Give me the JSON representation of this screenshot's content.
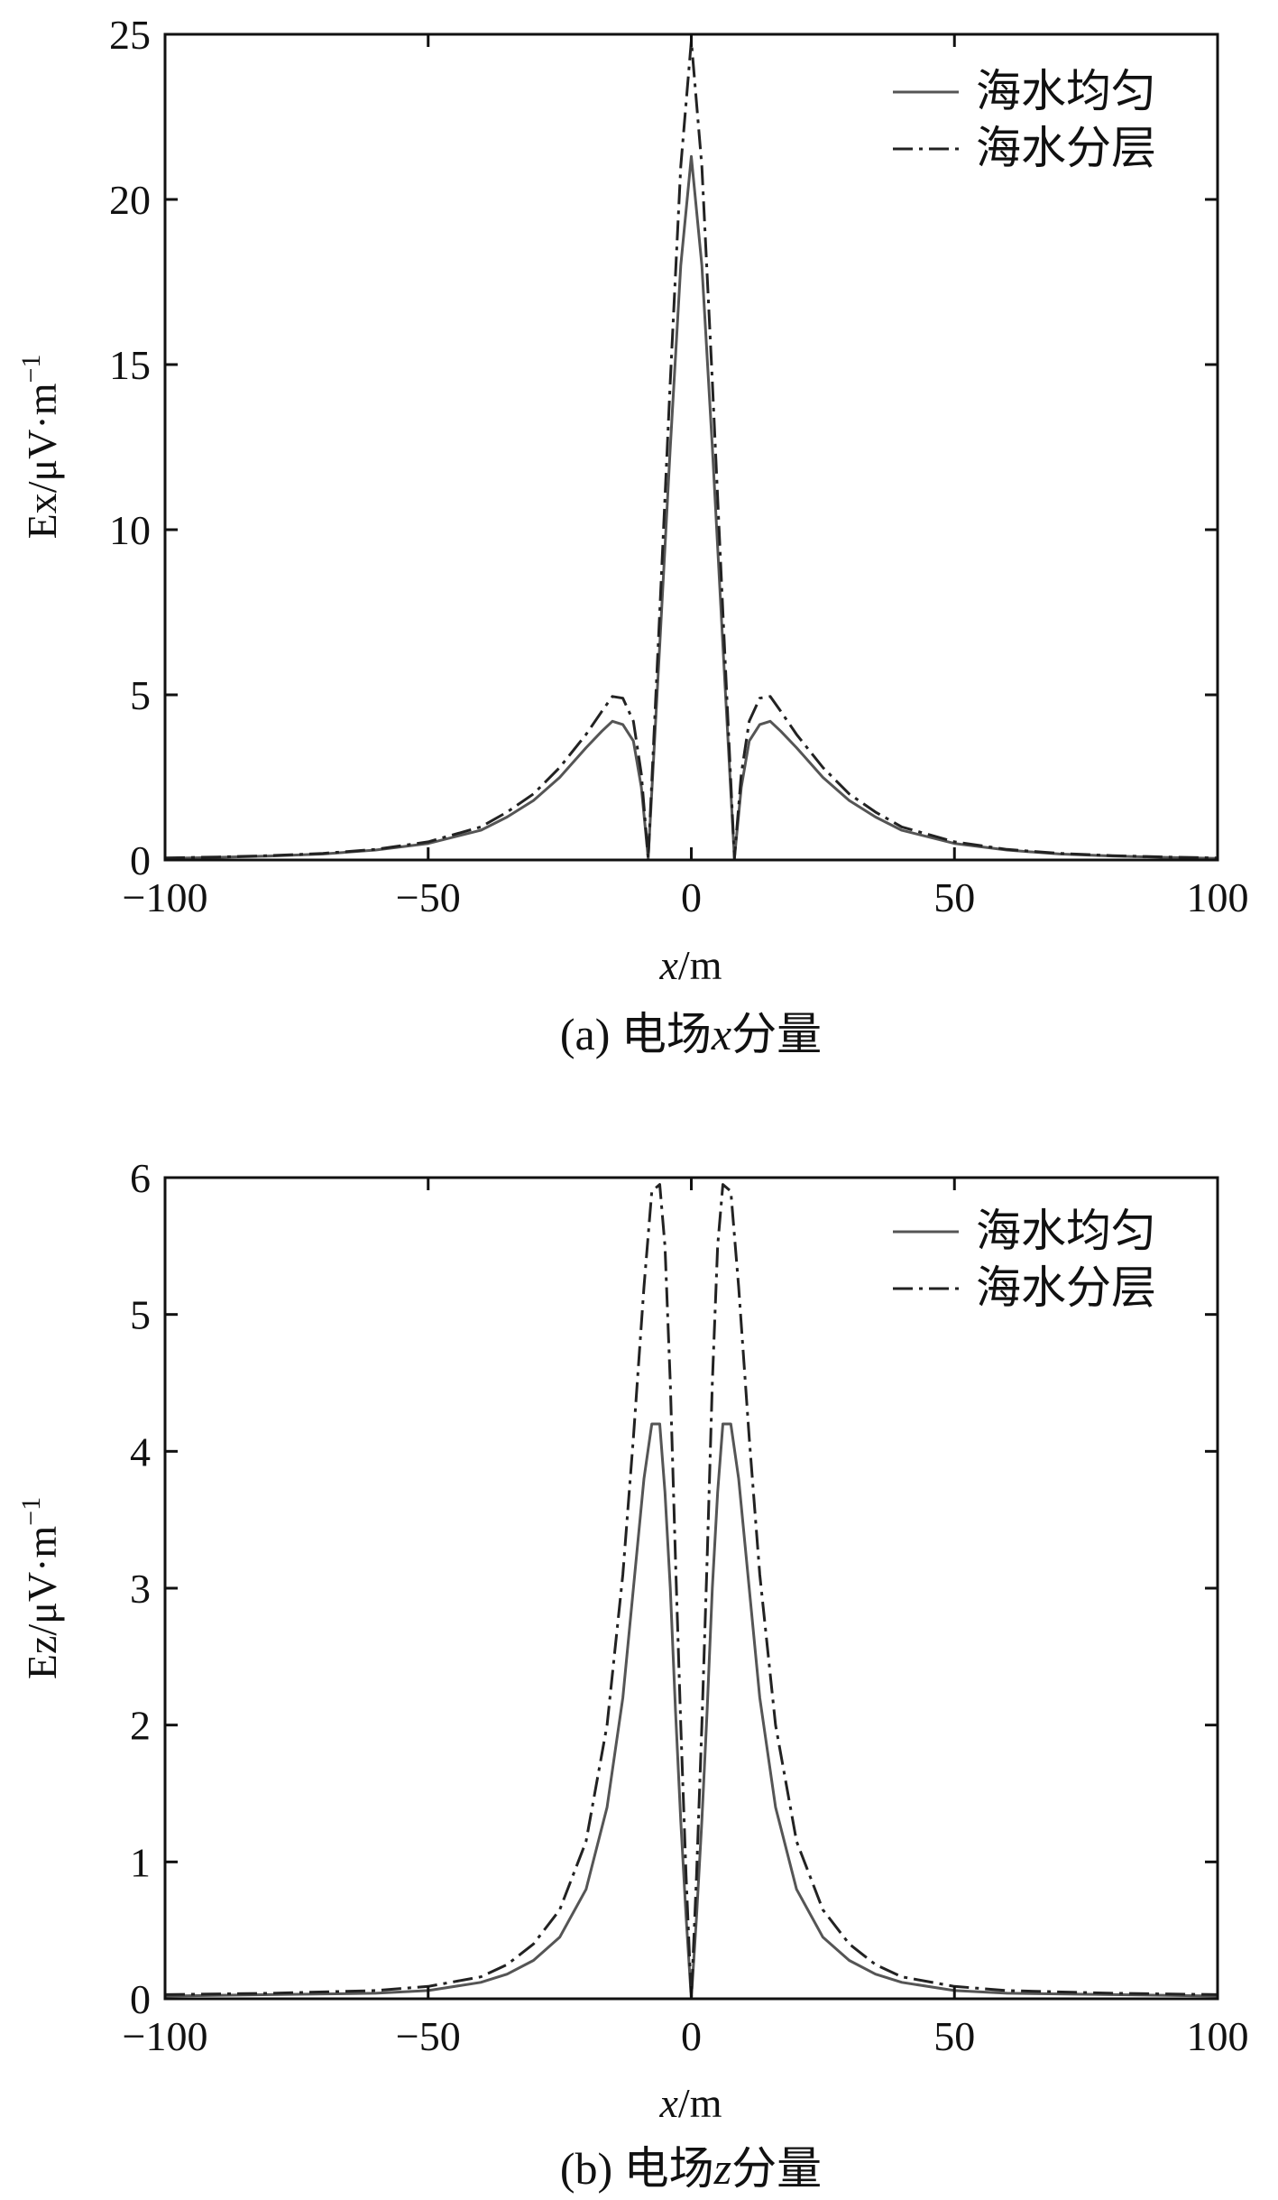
{
  "colors": {
    "uniform": "#555555",
    "layered": "#222222",
    "axis": "#111111"
  },
  "chart_data": [
    {
      "type": "line",
      "caption_prefix": "(a) 电场",
      "caption_var": "x",
      "caption_suffix": "分量",
      "xlabel_var": "x",
      "xlabel_unit": "/m",
      "ylabel": "Ex/μV·m",
      "ylabel_sup": "−1",
      "xlim": [
        -100,
        100
      ],
      "ylim": [
        0,
        25
      ],
      "xticks": [
        -100,
        -50,
        0,
        50,
        100
      ],
      "xtick_labels": [
        "−100",
        "−50",
        "0",
        "50",
        "100"
      ],
      "yticks": [
        0,
        5,
        10,
        15,
        20,
        25
      ],
      "ytick_labels": [
        "0",
        "5",
        "10",
        "15",
        "20",
        "25"
      ],
      "legend_position": "top-right",
      "series": [
        {
          "name": "海水均匀",
          "style": "solid",
          "x": [
            -100,
            -90,
            -80,
            -70,
            -60,
            -50,
            -40,
            -35,
            -30,
            -25,
            -20,
            -17,
            -15,
            -13,
            -11,
            -9.5,
            -8.2,
            -6,
            -4,
            -2,
            0,
            2,
            4,
            6,
            8.2,
            9.5,
            11,
            13,
            15,
            17,
            20,
            25,
            30,
            35,
            40,
            50,
            60,
            70,
            80,
            90,
            100
          ],
          "y": [
            0.05,
            0.08,
            0.12,
            0.18,
            0.3,
            0.5,
            0.9,
            1.3,
            1.8,
            2.5,
            3.4,
            3.9,
            4.2,
            4.1,
            3.6,
            2.2,
            0.05,
            6.5,
            12.5,
            18.0,
            21.3,
            18.0,
            12.5,
            6.5,
            0.05,
            2.2,
            3.6,
            4.1,
            4.2,
            3.9,
            3.4,
            2.5,
            1.8,
            1.3,
            0.9,
            0.5,
            0.3,
            0.18,
            0.12,
            0.08,
            0.05
          ]
        },
        {
          "name": "海水分层",
          "style": "dashdot",
          "x": [
            -100,
            -90,
            -80,
            -70,
            -60,
            -50,
            -40,
            -35,
            -30,
            -25,
            -20,
            -17,
            -15,
            -13,
            -11,
            -9.5,
            -8.2,
            -6,
            -4,
            -2,
            0,
            2,
            4,
            6,
            8.2,
            9.5,
            11,
            13,
            15,
            17,
            20,
            25,
            30,
            35,
            40,
            50,
            60,
            70,
            80,
            90,
            100
          ],
          "y": [
            0.06,
            0.09,
            0.13,
            0.2,
            0.32,
            0.55,
            1.0,
            1.45,
            2.0,
            2.8,
            3.8,
            4.5,
            4.95,
            4.9,
            4.2,
            2.6,
            0.05,
            7.5,
            14.5,
            21.0,
            24.8,
            21.0,
            14.5,
            7.5,
            0.05,
            2.6,
            4.2,
            4.9,
            4.95,
            4.5,
            3.8,
            2.8,
            2.0,
            1.45,
            1.0,
            0.55,
            0.32,
            0.2,
            0.13,
            0.09,
            0.06
          ]
        }
      ]
    },
    {
      "type": "line",
      "caption_prefix": "(b) 电场",
      "caption_var": "z",
      "caption_suffix": "分量",
      "xlabel_var": "x",
      "xlabel_unit": "/m",
      "ylabel": "Ez/μV·m",
      "ylabel_sup": "−1",
      "xlim": [
        -100,
        100
      ],
      "ylim": [
        0,
        6
      ],
      "xticks": [
        -100,
        -50,
        0,
        50,
        100
      ],
      "xtick_labels": [
        "−100",
        "−50",
        "0",
        "50",
        "100"
      ],
      "yticks": [
        0,
        1,
        2,
        3,
        4,
        5,
        6
      ],
      "ytick_labels": [
        "0",
        "1",
        "2",
        "3",
        "4",
        "5",
        "6"
      ],
      "legend_position": "top-right",
      "series": [
        {
          "name": "海水均匀",
          "style": "solid",
          "x": [
            -100,
            -80,
            -60,
            -50,
            -40,
            -35,
            -30,
            -25,
            -20,
            -16,
            -13,
            -11,
            -9,
            -7.5,
            -6,
            -5,
            -4,
            -3,
            -2,
            -1,
            0,
            1,
            2,
            3,
            4,
            5,
            6,
            7.5,
            9,
            11,
            13,
            16,
            20,
            25,
            30,
            35,
            40,
            50,
            60,
            80,
            100
          ],
          "y": [
            0.02,
            0.03,
            0.04,
            0.06,
            0.12,
            0.18,
            0.28,
            0.45,
            0.8,
            1.4,
            2.2,
            3.0,
            3.8,
            4.2,
            4.2,
            3.7,
            3.0,
            2.1,
            1.3,
            0.6,
            0.0,
            0.6,
            1.3,
            2.1,
            3.0,
            3.7,
            4.2,
            4.2,
            3.8,
            3.0,
            2.2,
            1.4,
            0.8,
            0.45,
            0.28,
            0.18,
            0.12,
            0.06,
            0.04,
            0.03,
            0.02
          ]
        },
        {
          "name": "海水分层",
          "style": "dashdot",
          "x": [
            -100,
            -80,
            -60,
            -50,
            -40,
            -35,
            -30,
            -25,
            -20,
            -16,
            -13,
            -11,
            -9,
            -7.5,
            -6,
            -5,
            -4,
            -3,
            -2,
            -1,
            0,
            1,
            2,
            3,
            4,
            5,
            6,
            7.5,
            9,
            11,
            13,
            16,
            20,
            25,
            30,
            35,
            40,
            50,
            60,
            80,
            100
          ],
          "y": [
            0.03,
            0.04,
            0.06,
            0.09,
            0.16,
            0.25,
            0.4,
            0.65,
            1.15,
            2.0,
            3.1,
            4.1,
            5.2,
            5.9,
            5.95,
            5.5,
            4.5,
            3.2,
            2.0,
            0.9,
            0.0,
            0.9,
            2.0,
            3.2,
            4.5,
            5.5,
            5.95,
            5.9,
            5.2,
            4.1,
            3.1,
            2.0,
            1.15,
            0.65,
            0.4,
            0.25,
            0.16,
            0.09,
            0.06,
            0.04,
            0.03
          ]
        }
      ]
    }
  ]
}
